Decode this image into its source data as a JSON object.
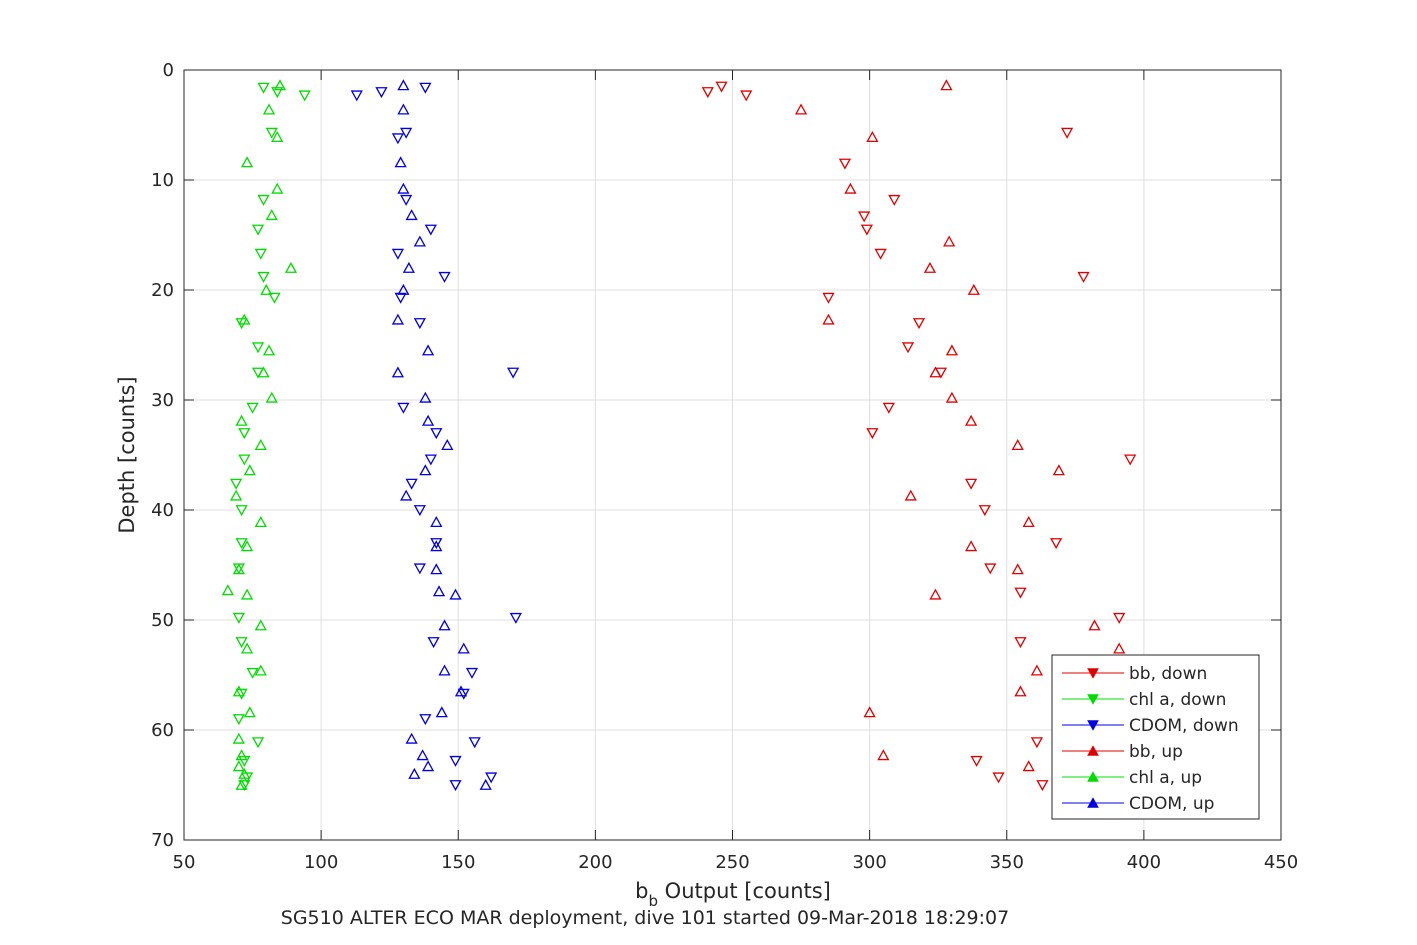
{
  "chart_data": {
    "type": "scatter",
    "xlabel_main": "b",
    "xlabel_sub": "b",
    "xlabel_rest": " Output [counts]",
    "ylabel": "Depth [counts]",
    "caption": "SG510 ALTER ECO MAR deployment, dive 101 started 09-Mar-2018 18:29:07",
    "xlim": [
      50,
      450
    ],
    "ylim": [
      0,
      70
    ],
    "y_reversed": true,
    "x_ticks": [
      50,
      100,
      150,
      200,
      250,
      300,
      350,
      400,
      450
    ],
    "y_ticks": [
      0,
      10,
      20,
      30,
      40,
      50,
      60,
      70
    ],
    "x_tick_labels": [
      "50",
      "100",
      "150",
      "200",
      "250",
      "300",
      "350",
      "400",
      "450"
    ],
    "y_tick_labels": [
      "0",
      "10",
      "20",
      "30",
      "40",
      "50",
      "60",
      "70"
    ],
    "grid": true,
    "legend_position": "bottom-right",
    "series": [
      {
        "name": "bb, down",
        "color": "#e00000",
        "marker": "triangle-down",
        "points": [
          [
            246,
            1.5
          ],
          [
            241,
            2
          ],
          [
            255,
            2.3
          ],
          [
            372,
            5.7
          ],
          [
            291,
            8.5
          ],
          [
            309,
            11.8
          ],
          [
            298,
            13.3
          ],
          [
            299,
            14.5
          ],
          [
            304,
            16.7
          ],
          [
            378,
            18.8
          ],
          [
            285,
            20.7
          ],
          [
            318,
            23
          ],
          [
            314,
            25.2
          ],
          [
            326,
            27.5
          ],
          [
            307,
            30.7
          ],
          [
            301,
            33
          ],
          [
            395,
            35.4
          ],
          [
            337,
            37.6
          ],
          [
            342,
            40
          ],
          [
            368,
            43
          ],
          [
            344,
            45.3
          ],
          [
            355,
            47.5
          ],
          [
            391,
            49.8
          ],
          [
            355,
            52
          ],
          [
            361,
            61.1
          ],
          [
            339,
            62.8
          ],
          [
            347,
            64.3
          ],
          [
            363,
            65
          ]
        ]
      },
      {
        "name": "chl a, down",
        "color": "#00dd00",
        "marker": "triangle-down",
        "points": [
          [
            79,
            1.6
          ],
          [
            84,
            2
          ],
          [
            94,
            2.3
          ],
          [
            82,
            5.7
          ],
          [
            79,
            11.8
          ],
          [
            77,
            14.5
          ],
          [
            78,
            16.7
          ],
          [
            79,
            18.8
          ],
          [
            83,
            20.7
          ],
          [
            71,
            23
          ],
          [
            77,
            25.2
          ],
          [
            77,
            27.5
          ],
          [
            75,
            30.7
          ],
          [
            72,
            33
          ],
          [
            72,
            35.4
          ],
          [
            69,
            37.6
          ],
          [
            71,
            40
          ],
          [
            71,
            43
          ],
          [
            70,
            45.3
          ],
          [
            70,
            49.8
          ],
          [
            71,
            52
          ],
          [
            75,
            54.8
          ],
          [
            71,
            56.7
          ],
          [
            70,
            59
          ],
          [
            77,
            61.1
          ],
          [
            72,
            62.8
          ],
          [
            73,
            64.3
          ],
          [
            72,
            65
          ]
        ]
      },
      {
        "name": "CDOM, down",
        "color": "#0000e0",
        "marker": "triangle-down",
        "points": [
          [
            138,
            1.6
          ],
          [
            122,
            2
          ],
          [
            113,
            2.3
          ],
          [
            131,
            5.7
          ],
          [
            128,
            6.2
          ],
          [
            131,
            11.8
          ],
          [
            140,
            14.5
          ],
          [
            128,
            16.7
          ],
          [
            145,
            18.8
          ],
          [
            129,
            20.7
          ],
          [
            136,
            23
          ],
          [
            170,
            27.5
          ],
          [
            130,
            30.7
          ],
          [
            142,
            33
          ],
          [
            140,
            35.4
          ],
          [
            133,
            37.6
          ],
          [
            136,
            40
          ],
          [
            142,
            43
          ],
          [
            136,
            45.3
          ],
          [
            171,
            49.8
          ],
          [
            141,
            52
          ],
          [
            155,
            54.8
          ],
          [
            152,
            56.7
          ],
          [
            138,
            59
          ],
          [
            156,
            61.1
          ],
          [
            149,
            62.8
          ],
          [
            162,
            64.3
          ],
          [
            149,
            65
          ]
        ]
      },
      {
        "name": "bb, up",
        "color": "#e00000",
        "marker": "triangle-up",
        "points": [
          [
            328,
            1.4
          ],
          [
            275,
            3.6
          ],
          [
            301,
            6.1
          ],
          [
            293,
            10.8
          ],
          [
            329,
            15.6
          ],
          [
            322,
            18
          ],
          [
            338,
            20
          ],
          [
            285,
            22.7
          ],
          [
            330,
            25.5
          ],
          [
            324,
            27.5
          ],
          [
            330,
            29.8
          ],
          [
            337,
            31.9
          ],
          [
            354,
            34.1
          ],
          [
            369,
            36.4
          ],
          [
            315,
            38.7
          ],
          [
            358,
            41.1
          ],
          [
            337,
            43.3
          ],
          [
            354,
            45.4
          ],
          [
            324,
            47.7
          ],
          [
            382,
            50.5
          ],
          [
            391,
            52.6
          ],
          [
            361,
            54.6
          ],
          [
            355,
            56.5
          ],
          [
            300,
            58.4
          ],
          [
            305,
            62.3
          ],
          [
            358,
            63.3
          ]
        ]
      },
      {
        "name": "chl a, up",
        "color": "#00dd00",
        "marker": "triangle-up",
        "points": [
          [
            85,
            1.4
          ],
          [
            81,
            3.6
          ],
          [
            84,
            6.1
          ],
          [
            73,
            8.4
          ],
          [
            84,
            10.8
          ],
          [
            82,
            13.2
          ],
          [
            89,
            18
          ],
          [
            80,
            20
          ],
          [
            72,
            22.7
          ],
          [
            81,
            25.5
          ],
          [
            79,
            27.5
          ],
          [
            82,
            29.8
          ],
          [
            71,
            31.9
          ],
          [
            78,
            34.1
          ],
          [
            74,
            36.4
          ],
          [
            69,
            38.7
          ],
          [
            78,
            41.1
          ],
          [
            73,
            43.3
          ],
          [
            70,
            45.4
          ],
          [
            66,
            47.3
          ],
          [
            73,
            47.7
          ],
          [
            78,
            50.5
          ],
          [
            73,
            52.6
          ],
          [
            78,
            54.6
          ],
          [
            70,
            56.5
          ],
          [
            74,
            58.4
          ],
          [
            70,
            60.8
          ],
          [
            71,
            62.3
          ],
          [
            70,
            63.3
          ],
          [
            72,
            64
          ],
          [
            71,
            65
          ]
        ]
      },
      {
        "name": "CDOM, up",
        "color": "#0000e0",
        "marker": "triangle-up",
        "points": [
          [
            130,
            1.4
          ],
          [
            130,
            3.6
          ],
          [
            129,
            8.4
          ],
          [
            130,
            10.8
          ],
          [
            133,
            13.2
          ],
          [
            136,
            15.6
          ],
          [
            132,
            18
          ],
          [
            130,
            20
          ],
          [
            128,
            22.7
          ],
          [
            139,
            25.5
          ],
          [
            128,
            27.5
          ],
          [
            138,
            29.8
          ],
          [
            139,
            31.9
          ],
          [
            146,
            34.1
          ],
          [
            138,
            36.4
          ],
          [
            131,
            38.7
          ],
          [
            142,
            41.1
          ],
          [
            142,
            43.3
          ],
          [
            142,
            45.4
          ],
          [
            143,
            47.4
          ],
          [
            149,
            47.7
          ],
          [
            145,
            50.5
          ],
          [
            152,
            52.6
          ],
          [
            145,
            54.6
          ],
          [
            151,
            56.5
          ],
          [
            144,
            58.4
          ],
          [
            133,
            60.8
          ],
          [
            137,
            62.3
          ],
          [
            139,
            63.3
          ],
          [
            134,
            64
          ],
          [
            160,
            65
          ]
        ]
      }
    ]
  }
}
